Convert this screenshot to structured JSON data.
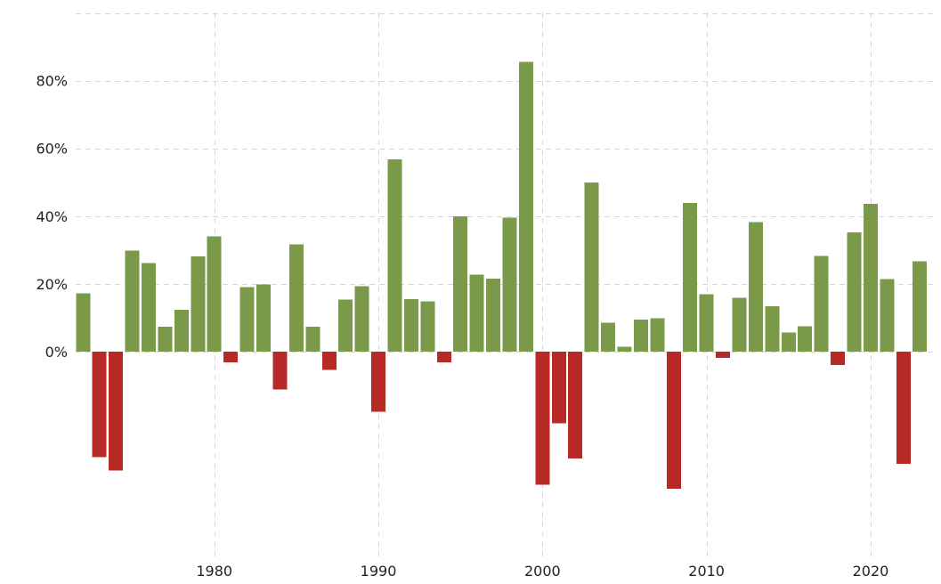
{
  "chart_data": {
    "type": "bar",
    "x": [
      1972,
      1973,
      1974,
      1975,
      1976,
      1977,
      1978,
      1979,
      1980,
      1981,
      1982,
      1983,
      1984,
      1985,
      1986,
      1987,
      1988,
      1989,
      1990,
      1991,
      1992,
      1993,
      1994,
      1995,
      1996,
      1997,
      1998,
      1999,
      2000,
      2001,
      2002,
      2003,
      2004,
      2005,
      2006,
      2007,
      2008,
      2009,
      2010,
      2011,
      2012,
      2013,
      2014,
      2015,
      2016,
      2017,
      2018,
      2019,
      2020,
      2021,
      2022,
      2023
    ],
    "values": [
      17.2,
      -31.1,
      -35.1,
      29.8,
      26.1,
      7.3,
      12.3,
      28.1,
      34.0,
      -3.2,
      19.0,
      19.9,
      -11.2,
      31.7,
      7.4,
      -5.4,
      15.4,
      19.3,
      -17.8,
      56.8,
      15.5,
      14.8,
      -3.2,
      39.9,
      22.7,
      21.6,
      39.6,
      85.6,
      -39.3,
      -21.1,
      -31.5,
      50.0,
      8.6,
      1.4,
      9.5,
      9.8,
      -40.5,
      43.9,
      16.9,
      -1.8,
      15.9,
      38.3,
      13.4,
      5.7,
      7.5,
      28.2,
      -3.9,
      35.2,
      43.6,
      21.4,
      -33.1,
      26.7
    ],
    "colors": {
      "positive": "#7a9a4a",
      "negative": "#b82a25"
    },
    "y_ticks": [
      {
        "value": 0,
        "label": "0%"
      },
      {
        "value": 20,
        "label": "20%"
      },
      {
        "value": 40,
        "label": "40%"
      },
      {
        "value": 60,
        "label": "60%"
      },
      {
        "value": 80,
        "label": "80%"
      }
    ],
    "x_ticks": [
      {
        "value": 1980,
        "label": "1980"
      },
      {
        "value": 1990,
        "label": "1990"
      },
      {
        "value": 2000,
        "label": "2000"
      },
      {
        "value": 2010,
        "label": "2010"
      },
      {
        "value": 2020,
        "label": "2020"
      }
    ],
    "ylim": [
      -60,
      100
    ],
    "grid": true
  }
}
